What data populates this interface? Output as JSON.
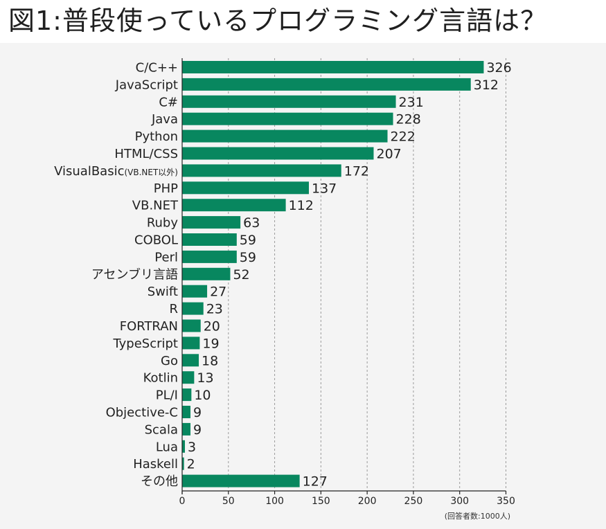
{
  "chart_data": {
    "type": "bar",
    "orientation": "horizontal",
    "title": "図1:普段使っているプログラミング言語は？",
    "categories": [
      "C/C++",
      "JavaScript",
      "C#",
      "Java",
      "Python",
      "HTML/CSS",
      "VisualBasic(VB.NET以外)",
      "PHP",
      "VB.NET",
      "Ruby",
      "COBOL",
      "Perl",
      "アセンブリ言語",
      "Swift",
      "R",
      "FORTRAN",
      "TypeScript",
      "Go",
      "Kotlin",
      "PL/I",
      "Objective-C",
      "Scala",
      "Lua",
      "Haskell",
      "その他"
    ],
    "category_labels": [
      {
        "main": "C/C++"
      },
      {
        "main": "JavaScript"
      },
      {
        "main": "C#"
      },
      {
        "main": "Java"
      },
      {
        "main": "Python"
      },
      {
        "main": "HTML/CSS"
      },
      {
        "main": "VisualBasic",
        "sub": "(VB.NET以外)"
      },
      {
        "main": "PHP"
      },
      {
        "main": "VB.NET"
      },
      {
        "main": "Ruby"
      },
      {
        "main": "COBOL"
      },
      {
        "main": "Perl"
      },
      {
        "main": "アセンブリ言語"
      },
      {
        "main": "Swift"
      },
      {
        "main": "R"
      },
      {
        "main": "FORTRAN"
      },
      {
        "main": "TypeScript"
      },
      {
        "main": "Go"
      },
      {
        "main": "Kotlin"
      },
      {
        "main": "PL/I"
      },
      {
        "main": "Objective-C"
      },
      {
        "main": "Scala"
      },
      {
        "main": "Lua"
      },
      {
        "main": "Haskell"
      },
      {
        "main": "その他"
      }
    ],
    "values": [
      326,
      312,
      231,
      228,
      222,
      207,
      172,
      137,
      112,
      63,
      59,
      59,
      52,
      27,
      23,
      20,
      19,
      18,
      13,
      10,
      9,
      9,
      3,
      2,
      127
    ],
    "xlim": [
      0,
      350
    ],
    "xticks": [
      0,
      50,
      100,
      150,
      200,
      250,
      300,
      350
    ],
    "grid": "vertical dashed",
    "xlabel": "",
    "ylabel": "",
    "note": "(回答者数:1000人)",
    "bar_color": "#08875f"
  }
}
